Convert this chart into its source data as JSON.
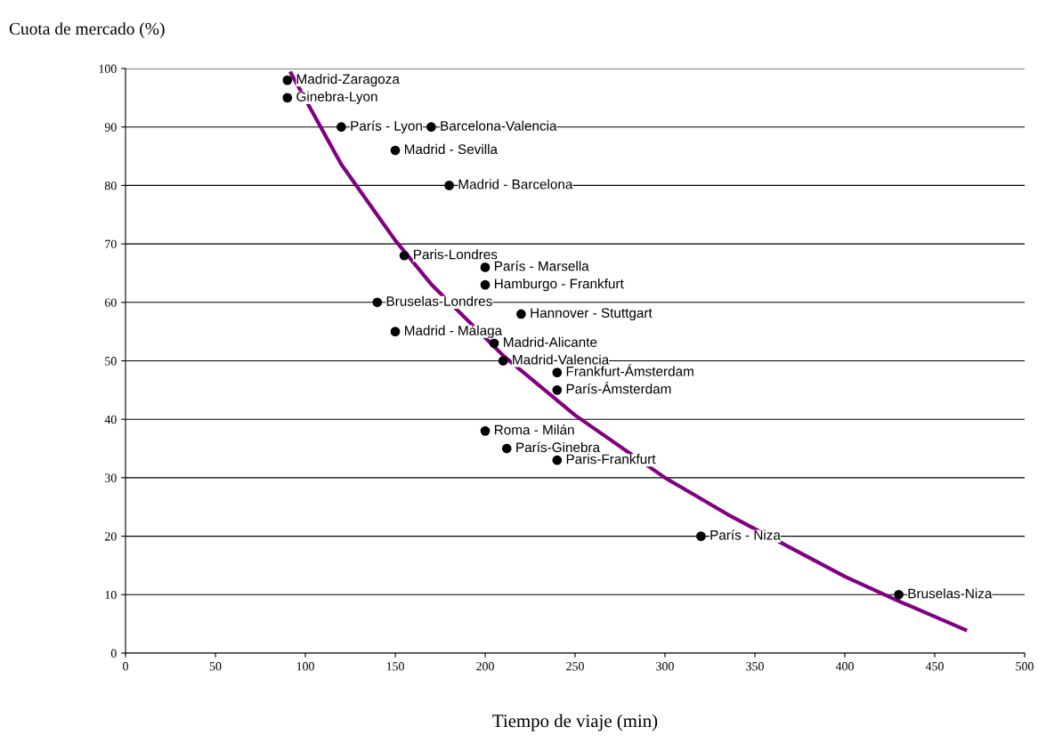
{
  "chart_data": {
    "type": "scatter",
    "xlabel": "Tiempo de viaje (min)",
    "ylabel": "Cuota de mercado (%)",
    "xlim": [
      0,
      500
    ],
    "ylim": [
      0,
      100
    ],
    "xticks": [
      0,
      50,
      100,
      150,
      200,
      250,
      300,
      350,
      400,
      450,
      500
    ],
    "yticks": [
      0,
      10,
      20,
      30,
      40,
      50,
      60,
      70,
      80,
      90,
      100
    ],
    "grid": "y",
    "marker": "circle",
    "series": [
      {
        "color": "#000000",
        "x": [
          90,
          90,
          120,
          170,
          150,
          180,
          155,
          200,
          200,
          140,
          220,
          150,
          205,
          210,
          240,
          240,
          200,
          212,
          240,
          320,
          430
        ],
        "values": [
          98,
          95,
          90,
          90,
          86,
          80,
          68,
          66,
          63,
          60,
          58,
          55,
          53,
          50,
          48,
          45,
          38,
          35,
          33,
          20,
          10
        ]
      },
      {
        "type": "line",
        "color": "#800080",
        "marker": "none",
        "line_style": "solid",
        "x": [
          92,
          120,
          150,
          170,
          210,
          250,
          300,
          335,
          400,
          430,
          467
        ],
        "values": [
          99.2,
          83.6,
          70.6,
          63.1,
          50.9,
          40.7,
          30,
          23.7,
          13.1,
          8.9,
          4
        ]
      }
    ],
    "annotations": [
      {
        "text": "Madrid-Zaragoza",
        "x": 90,
        "y": 98
      },
      {
        "text": "Ginebra-Lyon",
        "x": 90,
        "y": 95
      },
      {
        "text": "París - Lyon",
        "x": 120,
        "y": 90
      },
      {
        "text": "Barcelona-Valencia",
        "x": 170,
        "y": 90
      },
      {
        "text": "Madrid - Sevilla",
        "x": 150,
        "y": 86
      },
      {
        "text": "Madrid - Barcelona",
        "x": 180,
        "y": 80
      },
      {
        "text": "Paris-Londres",
        "x": 155,
        "y": 68
      },
      {
        "text": "París - Marsella",
        "x": 200,
        "y": 66
      },
      {
        "text": "Hamburgo - Frankfurt",
        "x": 200,
        "y": 63
      },
      {
        "text": "Bruselas-Londres",
        "x": 140,
        "y": 60
      },
      {
        "text": "Hannover - Stuttgart",
        "x": 220,
        "y": 58
      },
      {
        "text": "Madrid - Málaga",
        "x": 150,
        "y": 55
      },
      {
        "text": "Madrid-Alicante",
        "x": 205,
        "y": 53
      },
      {
        "text": "Madrid-Valencia",
        "x": 210,
        "y": 50
      },
      {
        "text": "Frankfurt-Ámsterdam",
        "x": 240,
        "y": 48
      },
      {
        "text": "París-Ámsterdam",
        "x": 240,
        "y": 45
      },
      {
        "text": "Roma - Milán",
        "x": 200,
        "y": 38
      },
      {
        "text": "París-Ginebra",
        "x": 212,
        "y": 35
      },
      {
        "text": "Paris-Frankfurt",
        "x": 240,
        "y": 33
      },
      {
        "text": "París - Niza",
        "x": 320,
        "y": 20
      },
      {
        "text": "Bruselas-Niza",
        "x": 430,
        "y": 10
      }
    ]
  }
}
